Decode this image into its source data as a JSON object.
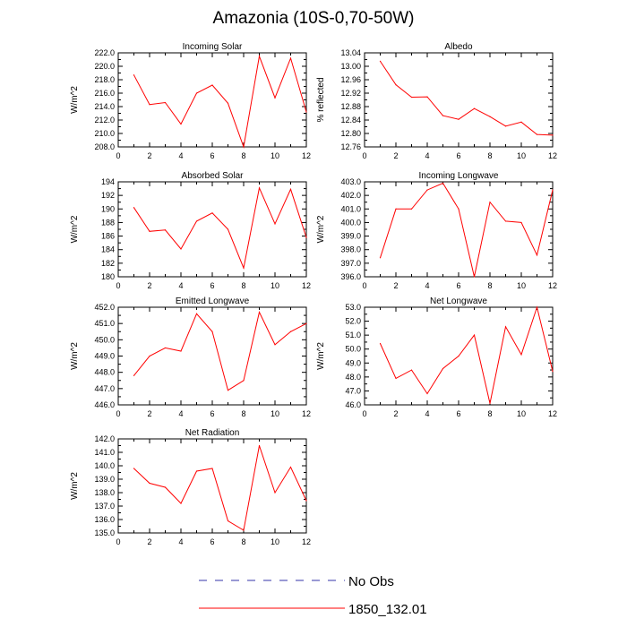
{
  "page": {
    "title": "Amazonia (10S-0,70-50W)"
  },
  "colors": {
    "series": "#ff0000",
    "no_obs": "#3333aa",
    "axis": "#000000"
  },
  "legend": {
    "entries": [
      {
        "label": "No Obs",
        "style": "dashed",
        "color": "#3333aa"
      },
      {
        "label": "1850_132.01",
        "style": "solid",
        "color": "#ff0000"
      }
    ]
  },
  "chart_data": [
    {
      "type": "line",
      "title": "Incoming Solar",
      "ylabel": "W/m^2",
      "xlim": [
        0,
        12
      ],
      "xticks": [
        "0",
        "2",
        "4",
        "6",
        "8",
        "10",
        "12"
      ],
      "ylim": [
        208.0,
        222.0
      ],
      "yticks": [
        "208.0",
        "210.0",
        "212.0",
        "214.0",
        "216.0",
        "218.0",
        "220.0",
        "222.0"
      ],
      "x": [
        1,
        2,
        3,
        4,
        5,
        6,
        7,
        8,
        9,
        10,
        11,
        12
      ],
      "series": [
        {
          "name": "1850_132.01",
          "values": [
            218.7,
            214.3,
            214.6,
            211.4,
            216.0,
            217.2,
            214.5,
            208.0,
            221.5,
            215.3,
            221.2,
            213.2
          ]
        }
      ]
    },
    {
      "type": "line",
      "title": "Albedo",
      "ylabel": "% reflected",
      "xlim": [
        0,
        12
      ],
      "xticks": [
        "0",
        "2",
        "4",
        "6",
        "8",
        "10",
        "12"
      ],
      "ylim": [
        12.76,
        13.04
      ],
      "yticks": [
        "12.76",
        "12.80",
        "12.84",
        "12.88",
        "12.92",
        "12.96",
        "13.00",
        "13.04"
      ],
      "x": [
        1,
        2,
        3,
        4,
        5,
        6,
        7,
        8,
        9,
        10,
        11,
        12
      ],
      "series": [
        {
          "name": "1850_132.01",
          "values": [
            13.015,
            12.945,
            12.908,
            12.909,
            12.853,
            12.842,
            12.874,
            12.85,
            12.822,
            12.834,
            12.797,
            12.795
          ]
        }
      ]
    },
    {
      "type": "line",
      "title": "Absorbed Solar",
      "ylabel": "W/m^2",
      "xlim": [
        0,
        12
      ],
      "xticks": [
        "0",
        "2",
        "4",
        "6",
        "8",
        "10",
        "12"
      ],
      "ylim": [
        180,
        194
      ],
      "yticks": [
        "180",
        "182",
        "184",
        "186",
        "188",
        "190",
        "192",
        "194"
      ],
      "x": [
        1,
        2,
        3,
        4,
        5,
        6,
        7,
        8,
        9,
        10,
        11,
        12
      ],
      "series": [
        {
          "name": "1850_132.01",
          "values": [
            190.2,
            186.7,
            186.9,
            184.1,
            188.2,
            189.4,
            187.0,
            181.3,
            193.1,
            187.8,
            192.9,
            185.8
          ]
        }
      ]
    },
    {
      "type": "line",
      "title": "Incoming Longwave",
      "ylabel": "W/m^2",
      "xlim": [
        0,
        12
      ],
      "xticks": [
        "0",
        "2",
        "4",
        "6",
        "8",
        "10",
        "12"
      ],
      "ylim": [
        396.0,
        403.0
      ],
      "yticks": [
        "396.0",
        "397.0",
        "398.0",
        "399.0",
        "400.0",
        "401.0",
        "402.0",
        "403.0"
      ],
      "x": [
        1,
        2,
        3,
        4,
        5,
        6,
        7,
        8,
        9,
        10,
        11,
        12
      ],
      "series": [
        {
          "name": "1850_132.01",
          "values": [
            397.4,
            401.0,
            401.0,
            402.4,
            402.9,
            401.0,
            396.0,
            401.5,
            400.1,
            400.0,
            397.6,
            402.4
          ]
        }
      ]
    },
    {
      "type": "line",
      "title": "Emitted Longwave",
      "ylabel": "W/m^2",
      "xlim": [
        0,
        12
      ],
      "xticks": [
        "0",
        "2",
        "4",
        "6",
        "8",
        "10",
        "12"
      ],
      "ylim": [
        446.0,
        452.0
      ],
      "yticks": [
        "446.0",
        "447.0",
        "448.0",
        "449.0",
        "450.0",
        "451.0",
        "452.0"
      ],
      "x": [
        1,
        2,
        3,
        4,
        5,
        6,
        7,
        8,
        9,
        10,
        11,
        12
      ],
      "series": [
        {
          "name": "1850_132.01",
          "values": [
            447.8,
            449.0,
            449.5,
            449.3,
            451.6,
            450.5,
            446.9,
            447.5,
            451.7,
            449.7,
            450.5,
            451.0
          ]
        }
      ]
    },
    {
      "type": "line",
      "title": "Net Longwave",
      "ylabel": "W/m^2",
      "xlim": [
        0,
        12
      ],
      "xticks": [
        "0",
        "2",
        "4",
        "6",
        "8",
        "10",
        "12"
      ],
      "ylim": [
        46.0,
        53.0
      ],
      "yticks": [
        "46.0",
        "47.0",
        "48.0",
        "49.0",
        "50.0",
        "51.0",
        "52.0",
        "53.0"
      ],
      "x": [
        1,
        2,
        3,
        4,
        5,
        6,
        7,
        8,
        9,
        10,
        11,
        12
      ],
      "series": [
        {
          "name": "1850_132.01",
          "values": [
            50.4,
            47.9,
            48.5,
            46.8,
            48.6,
            49.5,
            51.0,
            46.1,
            51.6,
            49.6,
            53.0,
            48.4
          ]
        }
      ]
    },
    {
      "type": "line",
      "title": "Net Radiation",
      "ylabel": "W/m^2",
      "xlim": [
        0,
        12
      ],
      "xticks": [
        "0",
        "2",
        "4",
        "6",
        "8",
        "10",
        "12"
      ],
      "ylim": [
        135.0,
        142.0
      ],
      "yticks": [
        "135.0",
        "136.0",
        "137.0",
        "138.0",
        "139.0",
        "140.0",
        "141.0",
        "142.0"
      ],
      "x": [
        1,
        2,
        3,
        4,
        5,
        6,
        7,
        8,
        9,
        10,
        11,
        12
      ],
      "series": [
        {
          "name": "1850_132.01",
          "values": [
            139.8,
            138.7,
            138.4,
            137.2,
            139.6,
            139.8,
            135.9,
            135.2,
            141.5,
            138.0,
            139.9,
            137.4
          ]
        }
      ]
    }
  ]
}
